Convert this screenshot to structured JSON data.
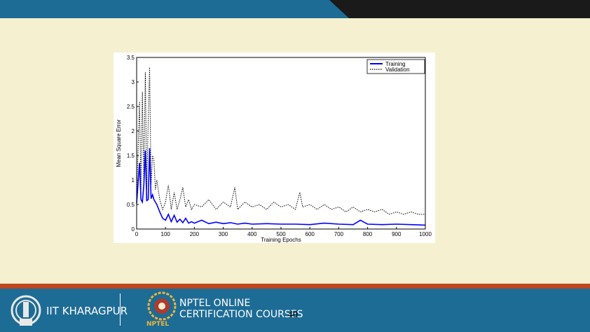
{
  "slide": {
    "number": "40"
  },
  "footer": {
    "institute": "IIT KHARAGPUR",
    "course_line1": "NPTEL ONLINE",
    "course_line2": "CERTIFICATION COURSES",
    "logo_text": "NPTEL"
  },
  "colors": {
    "header_blue": "#1d6c95",
    "header_dark": "#1a1a1a",
    "footer_accent": "#c0461f",
    "background": "#f5f0cf",
    "training": "#0000ff",
    "validation": "#000000"
  },
  "chart_data": {
    "type": "line",
    "title": "",
    "xlabel": "Training Epochs",
    "ylabel": "Mean Square Error",
    "xlim": [
      0,
      1000
    ],
    "ylim": [
      0,
      3.5
    ],
    "xticks": [
      "0",
      "100",
      "200",
      "300",
      "400",
      "500",
      "600",
      "700",
      "800",
      "900",
      "1000"
    ],
    "yticks": [
      "0",
      "0.5",
      "1",
      "1.5",
      "2",
      "2.5",
      "3",
      "3.5"
    ],
    "grid": false,
    "legend_position": "top-right",
    "series": [
      {
        "name": "Training",
        "style": "solid",
        "points": [
          [
            0,
            0.52
          ],
          [
            10,
            1.35
          ],
          [
            15,
            0.6
          ],
          [
            20,
            0.55
          ],
          [
            25,
            0.9
          ],
          [
            30,
            1.6
          ],
          [
            35,
            0.58
          ],
          [
            40,
            0.6
          ],
          [
            45,
            1.65
          ],
          [
            50,
            0.62
          ],
          [
            55,
            0.7
          ],
          [
            60,
            0.6
          ],
          [
            70,
            0.5
          ],
          [
            80,
            0.35
          ],
          [
            90,
            0.22
          ],
          [
            100,
            0.18
          ],
          [
            110,
            0.3
          ],
          [
            120,
            0.15
          ],
          [
            130,
            0.28
          ],
          [
            140,
            0.14
          ],
          [
            150,
            0.2
          ],
          [
            160,
            0.13
          ],
          [
            170,
            0.22
          ],
          [
            180,
            0.12
          ],
          [
            190,
            0.15
          ],
          [
            200,
            0.12
          ],
          [
            225,
            0.18
          ],
          [
            250,
            0.11
          ],
          [
            275,
            0.14
          ],
          [
            300,
            0.11
          ],
          [
            325,
            0.13
          ],
          [
            350,
            0.1
          ],
          [
            375,
            0.12
          ],
          [
            400,
            0.1
          ],
          [
            450,
            0.11
          ],
          [
            500,
            0.1
          ],
          [
            550,
            0.1
          ],
          [
            600,
            0.09
          ],
          [
            650,
            0.12
          ],
          [
            700,
            0.1
          ],
          [
            750,
            0.09
          ],
          [
            775,
            0.18
          ],
          [
            800,
            0.1
          ],
          [
            850,
            0.09
          ],
          [
            900,
            0.1
          ],
          [
            950,
            0.09
          ],
          [
            1000,
            0.08
          ]
        ]
      },
      {
        "name": "Validation",
        "style": "dotted",
        "points": [
          [
            0,
            0.6
          ],
          [
            10,
            2.6
          ],
          [
            15,
            0.8
          ],
          [
            20,
            2.8
          ],
          [
            25,
            0.9
          ],
          [
            30,
            3.2
          ],
          [
            35,
            0.8
          ],
          [
            40,
            2.2
          ],
          [
            45,
            3.3
          ],
          [
            50,
            0.9
          ],
          [
            55,
            1.5
          ],
          [
            60,
            1.4
          ],
          [
            65,
            0.8
          ],
          [
            70,
            1.0
          ],
          [
            80,
            0.6
          ],
          [
            90,
            0.4
          ],
          [
            100,
            0.55
          ],
          [
            110,
            0.9
          ],
          [
            120,
            0.4
          ],
          [
            130,
            0.75
          ],
          [
            140,
            0.4
          ],
          [
            150,
            0.6
          ],
          [
            160,
            0.85
          ],
          [
            170,
            0.45
          ],
          [
            180,
            0.6
          ],
          [
            190,
            0.4
          ],
          [
            200,
            0.5
          ],
          [
            225,
            0.45
          ],
          [
            250,
            0.6
          ],
          [
            275,
            0.4
          ],
          [
            300,
            0.55
          ],
          [
            325,
            0.45
          ],
          [
            340,
            0.85
          ],
          [
            350,
            0.4
          ],
          [
            375,
            0.55
          ],
          [
            400,
            0.45
          ],
          [
            425,
            0.5
          ],
          [
            450,
            0.4
          ],
          [
            475,
            0.55
          ],
          [
            500,
            0.45
          ],
          [
            525,
            0.5
          ],
          [
            550,
            0.4
          ],
          [
            565,
            0.75
          ],
          [
            575,
            0.45
          ],
          [
            600,
            0.5
          ],
          [
            625,
            0.4
          ],
          [
            650,
            0.5
          ],
          [
            675,
            0.4
          ],
          [
            700,
            0.45
          ],
          [
            725,
            0.35
          ],
          [
            750,
            0.45
          ],
          [
            775,
            0.35
          ],
          [
            800,
            0.4
          ],
          [
            825,
            0.35
          ],
          [
            850,
            0.4
          ],
          [
            875,
            0.3
          ],
          [
            900,
            0.35
          ],
          [
            925,
            0.3
          ],
          [
            950,
            0.35
          ],
          [
            975,
            0.3
          ],
          [
            1000,
            0.3
          ]
        ]
      }
    ]
  }
}
